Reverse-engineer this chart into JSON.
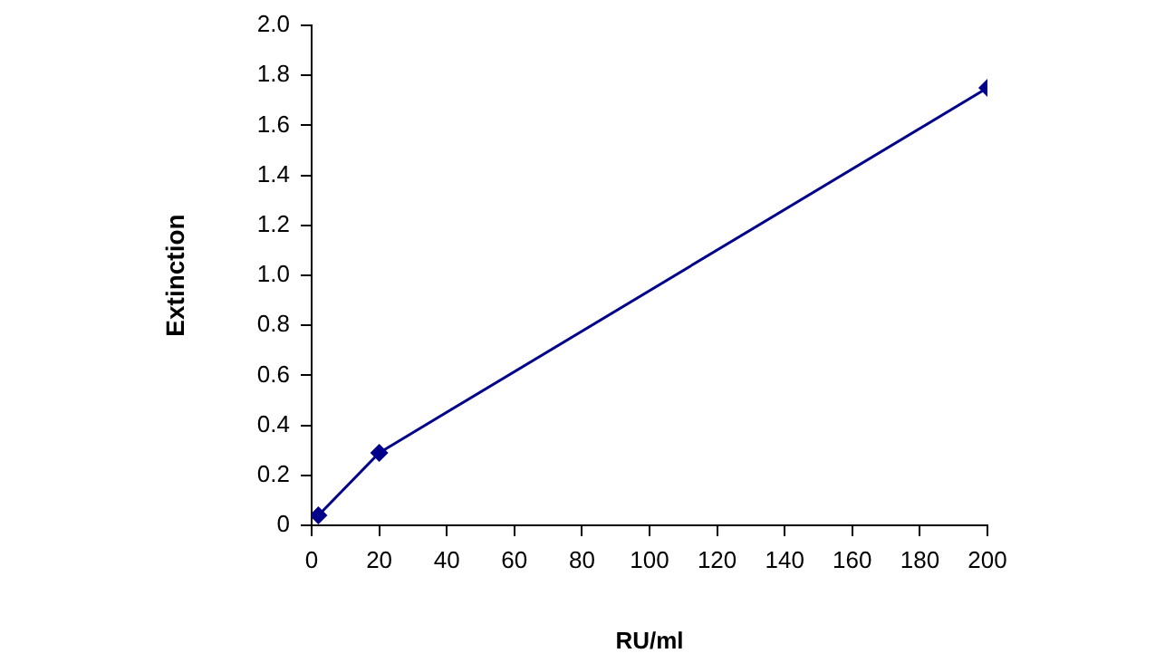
{
  "chart_data": {
    "type": "line",
    "xlabel": "RU/ml",
    "ylabel": "Extinction",
    "x": [
      2,
      20,
      200
    ],
    "series": [
      {
        "color": "#00008b",
        "values": [
          0.04,
          0.29,
          1.75
        ]
      }
    ],
    "xlim": [
      0,
      200
    ],
    "xticks": [
      0,
      20,
      40,
      60,
      80,
      100,
      120,
      140,
      160,
      180,
      200
    ],
    "ylim": [
      0,
      2
    ],
    "yticks": [
      {
        "value": 0,
        "label": "0"
      },
      {
        "value": 0.2,
        "label": "0.2"
      },
      {
        "value": 0.4,
        "label": "0.4"
      },
      {
        "value": 0.6,
        "label": "0.6"
      },
      {
        "value": 0.8,
        "label": "0.8"
      },
      {
        "value": 1,
        "label": "1.0"
      },
      {
        "value": 1.2,
        "label": "1.2"
      },
      {
        "value": 1.4,
        "label": "1.4"
      },
      {
        "value": 1.6,
        "label": "1.6"
      },
      {
        "value": 1.8,
        "label": "1.8"
      },
      {
        "value": 2,
        "label": "2.0"
      }
    ],
    "grid": false,
    "legend": false,
    "marker": "diamond",
    "line_style": "solid"
  }
}
